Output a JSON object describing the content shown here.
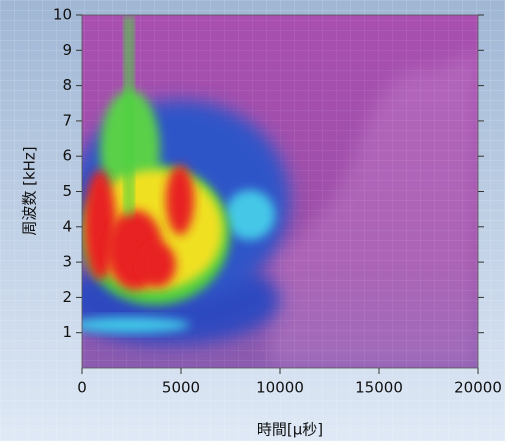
{
  "chart_data": {
    "type": "spectrogram",
    "xlabel": "時間[μ秒]",
    "ylabel": "周波数 [kHz]",
    "xlim": [
      0,
      20000
    ],
    "xticks": [
      0,
      5000,
      10000,
      15000,
      20000
    ],
    "ylim": [
      0,
      10
    ],
    "yticks": [
      1,
      2,
      3,
      4,
      5,
      6,
      7,
      8,
      9,
      10
    ]
  }
}
